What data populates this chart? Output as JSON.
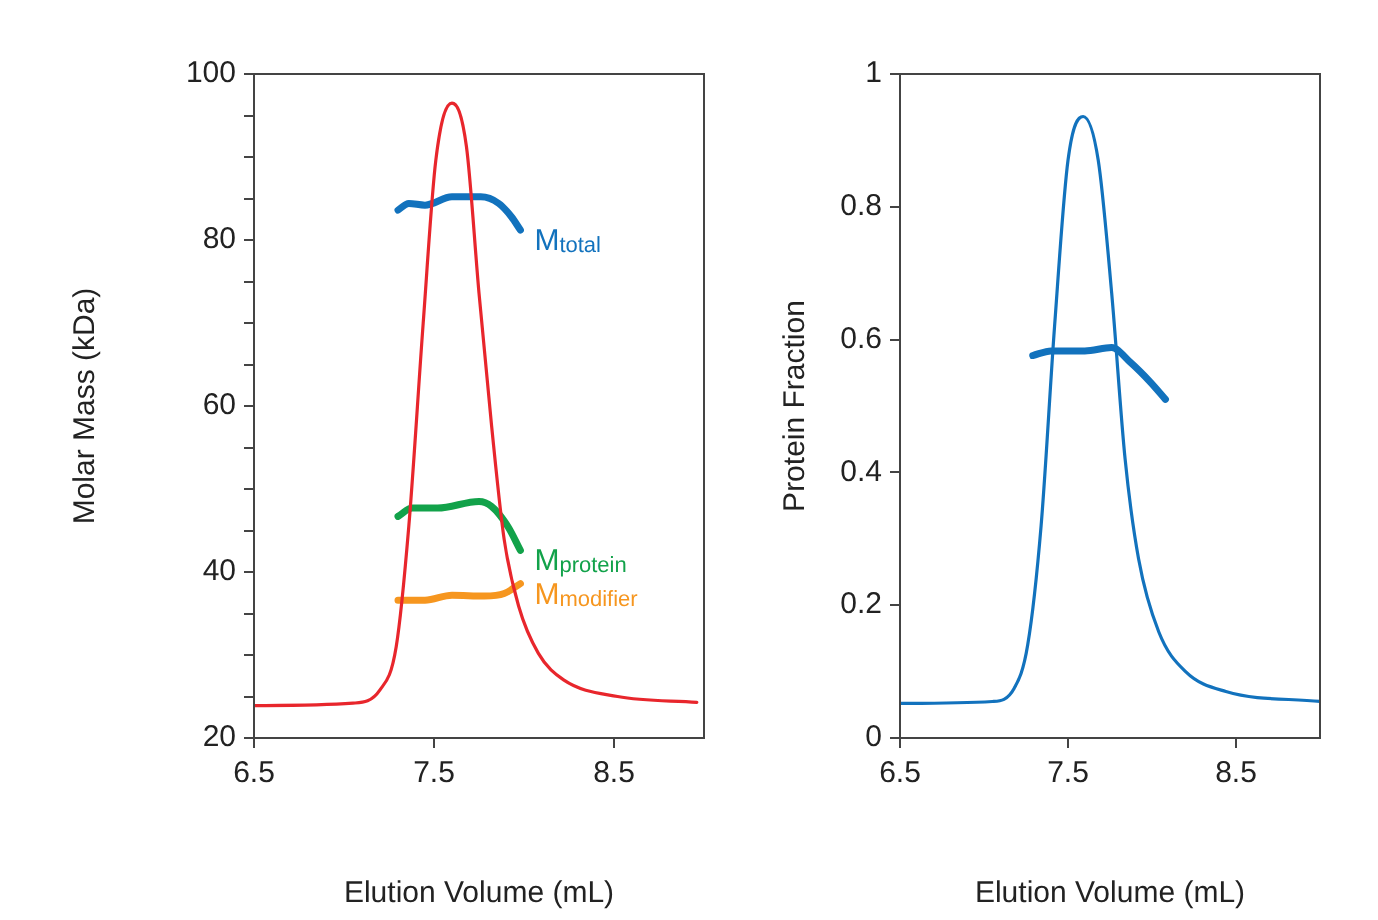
{
  "chart_data": [
    {
      "type": "line",
      "xlabel": "Elution Volume (mL)",
      "ylabel": "Molar Mass (kDa)",
      "xlim": [
        6.5,
        9
      ],
      "xticks": [
        6.5,
        7.5,
        8.5
      ],
      "ylim": [
        20,
        100
      ],
      "yticks": [
        20,
        {
          "value": 25,
          "label": null
        },
        {
          "value": 30,
          "label": null
        },
        {
          "value": 35,
          "label": null
        },
        40,
        {
          "value": 45,
          "label": null
        },
        {
          "value": 50,
          "label": null
        },
        {
          "value": 55,
          "label": null
        },
        60,
        {
          "value": 65,
          "label": null
        },
        {
          "value": 70,
          "label": null
        },
        {
          "value": 75,
          "label": null
        },
        80,
        {
          "value": 85,
          "label": null
        },
        {
          "value": 90,
          "label": null
        },
        {
          "value": 95,
          "label": null
        },
        100
      ],
      "grid": false,
      "legend": false,
      "marker": "none",
      "line_style": "solid",
      "series": [
        {
          "color": "#e8262c",
          "x": [
            6.5,
            7.05,
            7.2,
            7.29,
            7.36,
            7.44,
            7.51,
            7.6,
            7.68,
            7.75,
            7.82,
            7.89,
            7.97,
            8.08,
            8.22,
            8.52,
            8.96
          ],
          "values": [
            23.9,
            24.2,
            25.8,
            31,
            45.5,
            70,
            89.6,
            96.5,
            91.3,
            73.6,
            57.6,
            43.9,
            35.9,
            30.2,
            27,
            25,
            24.3
          ]
        },
        {
          "name": "M$_{total}$",
          "color": "#1272bd",
          "x": [
            7.3,
            7.36,
            7.45,
            7.6,
            7.76,
            7.86,
            7.93,
            7.98
          ],
          "values": [
            83.6,
            84.4,
            84.2,
            85.2,
            85.2,
            84.4,
            82.8,
            81.2
          ]
        },
        {
          "name": "M$_{protein}$",
          "color": "#12a24a",
          "x": [
            7.3,
            7.38,
            7.52,
            7.75,
            7.82,
            7.91,
            7.98
          ],
          "values": [
            46.7,
            47.7,
            47.7,
            48.5,
            47.9,
            45.5,
            42.6
          ]
        },
        {
          "name": "M$_{modifier}$",
          "color": "#f6961f",
          "x": [
            7.3,
            7.45,
            7.6,
            7.78,
            7.89,
            7.98
          ],
          "values": [
            36.6,
            36.6,
            37.2,
            37.1,
            37.4,
            38.6
          ]
        }
      ]
    },
    {
      "type": "line",
      "xlabel": "Elution Volume (mL)",
      "ylabel": "Protein Fraction",
      "xlim": [
        6.5,
        9
      ],
      "xticks": [
        6.5,
        7.5,
        8.5
      ],
      "ylim": [
        0,
        1
      ],
      "yticks": [
        0,
        0.2,
        0.4,
        0.6,
        0.8,
        1
      ],
      "grid": false,
      "legend": false,
      "marker": "none",
      "line_style": "solid",
      "series": [
        {
          "color": "#1272bd",
          "x": [
            6.5,
            7.05,
            7.18,
            7.26,
            7.34,
            7.42,
            7.5,
            7.59,
            7.68,
            7.76,
            7.84,
            7.92,
            8.04,
            8.2,
            8.44,
            9.0
          ],
          "values": [
            0.052,
            0.055,
            0.075,
            0.14,
            0.32,
            0.62,
            0.87,
            0.936,
            0.87,
            0.67,
            0.42,
            0.27,
            0.16,
            0.1,
            0.07,
            0.055
          ]
        },
        {
          "color": "#1272bd",
          "x": [
            7.29,
            7.4,
            7.6,
            7.76,
            7.87,
            7.99,
            8.08
          ],
          "values": [
            0.576,
            0.583,
            0.583,
            0.588,
            0.566,
            0.536,
            0.51
          ]
        }
      ]
    }
  ]
}
